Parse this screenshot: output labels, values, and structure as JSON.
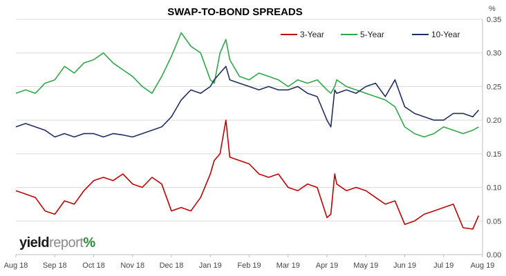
{
  "chart_data": {
    "type": "line",
    "title": "SWAP-TO-BOND SPREADS",
    "yunit": "%",
    "ylim": [
      0.0,
      0.35
    ],
    "yticks": [
      "0.00",
      "0.05",
      "0.10",
      "0.15",
      "0.20",
      "0.25",
      "0.30",
      "0.35"
    ],
    "xlim": [
      0,
      12
    ],
    "x_labels": [
      "Aug 18",
      "Sep 18",
      "Oct 18",
      "Nov 18",
      "Dec 18",
      "Jan 19",
      "Feb 19",
      "Mar 19",
      "Apr 19",
      "May 19",
      "Jun 19",
      "Jul 19",
      "Aug 19"
    ],
    "grid": true,
    "legend_position": "top-right",
    "x": [
      0,
      0.25,
      0.5,
      0.75,
      1,
      1.25,
      1.5,
      1.75,
      2,
      2.25,
      2.5,
      2.75,
      3,
      3.25,
      3.5,
      3.75,
      4,
      4.25,
      4.5,
      4.75,
      5,
      5.1,
      5.25,
      5.4,
      5.5,
      5.75,
      6,
      6.25,
      6.5,
      6.75,
      7,
      7.25,
      7.5,
      7.75,
      8,
      8.1,
      8.2,
      8.25,
      8.5,
      8.75,
      9,
      9.25,
      9.5,
      9.75,
      10,
      10.25,
      10.5,
      10.75,
      11,
      11.25,
      11.5,
      11.75,
      11.9
    ],
    "series": [
      {
        "name": "3-Year",
        "color": "#c00000",
        "values": [
          0.095,
          0.09,
          0.085,
          0.065,
          0.06,
          0.08,
          0.075,
          0.095,
          0.11,
          0.115,
          0.11,
          0.12,
          0.105,
          0.1,
          0.115,
          0.105,
          0.065,
          0.07,
          0.065,
          0.085,
          0.12,
          0.14,
          0.15,
          0.2,
          0.145,
          0.14,
          0.135,
          0.12,
          0.115,
          0.12,
          0.1,
          0.095,
          0.105,
          0.1,
          0.055,
          0.06,
          0.12,
          0.105,
          0.095,
          0.1,
          0.095,
          0.085,
          0.075,
          0.08,
          0.045,
          0.05,
          0.06,
          0.065,
          0.07,
          0.075,
          0.04,
          0.038,
          0.058
        ]
      },
      {
        "name": "5-Year",
        "color": "#2ca847",
        "values": [
          0.24,
          0.245,
          0.24,
          0.255,
          0.26,
          0.28,
          0.27,
          0.285,
          0.29,
          0.3,
          0.285,
          0.275,
          0.265,
          0.25,
          0.24,
          0.265,
          0.295,
          0.33,
          0.31,
          0.3,
          0.26,
          0.255,
          0.3,
          0.32,
          0.29,
          0.265,
          0.26,
          0.27,
          0.265,
          0.26,
          0.25,
          0.26,
          0.255,
          0.26,
          0.245,
          0.24,
          0.25,
          0.26,
          0.25,
          0.245,
          0.24,
          0.235,
          0.23,
          0.22,
          0.19,
          0.18,
          0.175,
          0.18,
          0.19,
          0.185,
          0.18,
          0.185,
          0.19
        ]
      },
      {
        "name": "10-Year",
        "color": "#1f2d5e",
        "values": [
          0.19,
          0.195,
          0.19,
          0.185,
          0.175,
          0.18,
          0.175,
          0.18,
          0.18,
          0.175,
          0.18,
          0.178,
          0.175,
          0.18,
          0.185,
          0.19,
          0.205,
          0.23,
          0.245,
          0.24,
          0.25,
          0.26,
          0.27,
          0.28,
          0.26,
          0.255,
          0.25,
          0.245,
          0.25,
          0.245,
          0.245,
          0.25,
          0.24,
          0.235,
          0.2,
          0.19,
          0.245,
          0.24,
          0.245,
          0.24,
          0.25,
          0.255,
          0.235,
          0.26,
          0.22,
          0.21,
          0.205,
          0.2,
          0.2,
          0.21,
          0.21,
          0.205,
          0.215
        ]
      }
    ]
  },
  "logo": {
    "part1": "yield",
    "part2": "report",
    "part3": "%"
  }
}
